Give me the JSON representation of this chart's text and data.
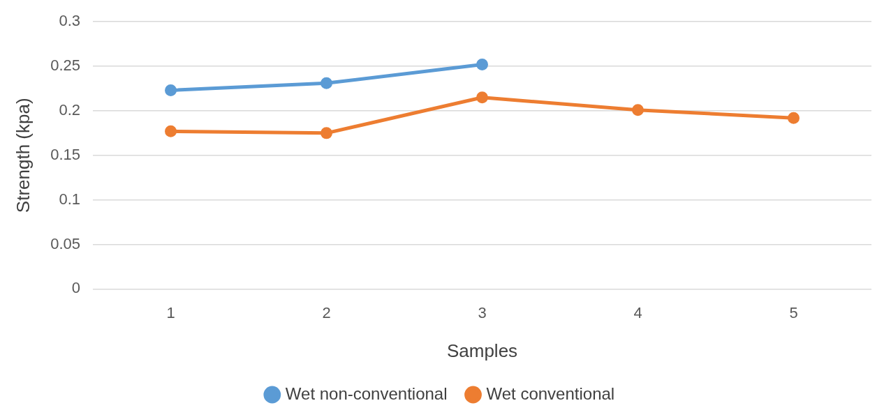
{
  "chart_data": {
    "type": "line",
    "xlabel": "Samples",
    "ylabel": "Strength (kpa)",
    "categories": [
      "1",
      "2",
      "3",
      "4",
      "5"
    ],
    "series": [
      {
        "name": "Wet non-conventional",
        "color": "#5b9bd5",
        "values": [
          0.223,
          0.231,
          0.252,
          null,
          null
        ]
      },
      {
        "name": "Wet conventional",
        "color": "#ed7d31",
        "values": [
          0.177,
          0.175,
          0.215,
          0.201,
          0.192
        ]
      }
    ],
    "ylim": [
      0,
      0.3
    ],
    "yticks": [
      0,
      0.05,
      0.1,
      0.15,
      0.2,
      0.25,
      0.3
    ],
    "grid": "y",
    "legend": "bottom",
    "marker": "circle",
    "line_style": "solid"
  }
}
